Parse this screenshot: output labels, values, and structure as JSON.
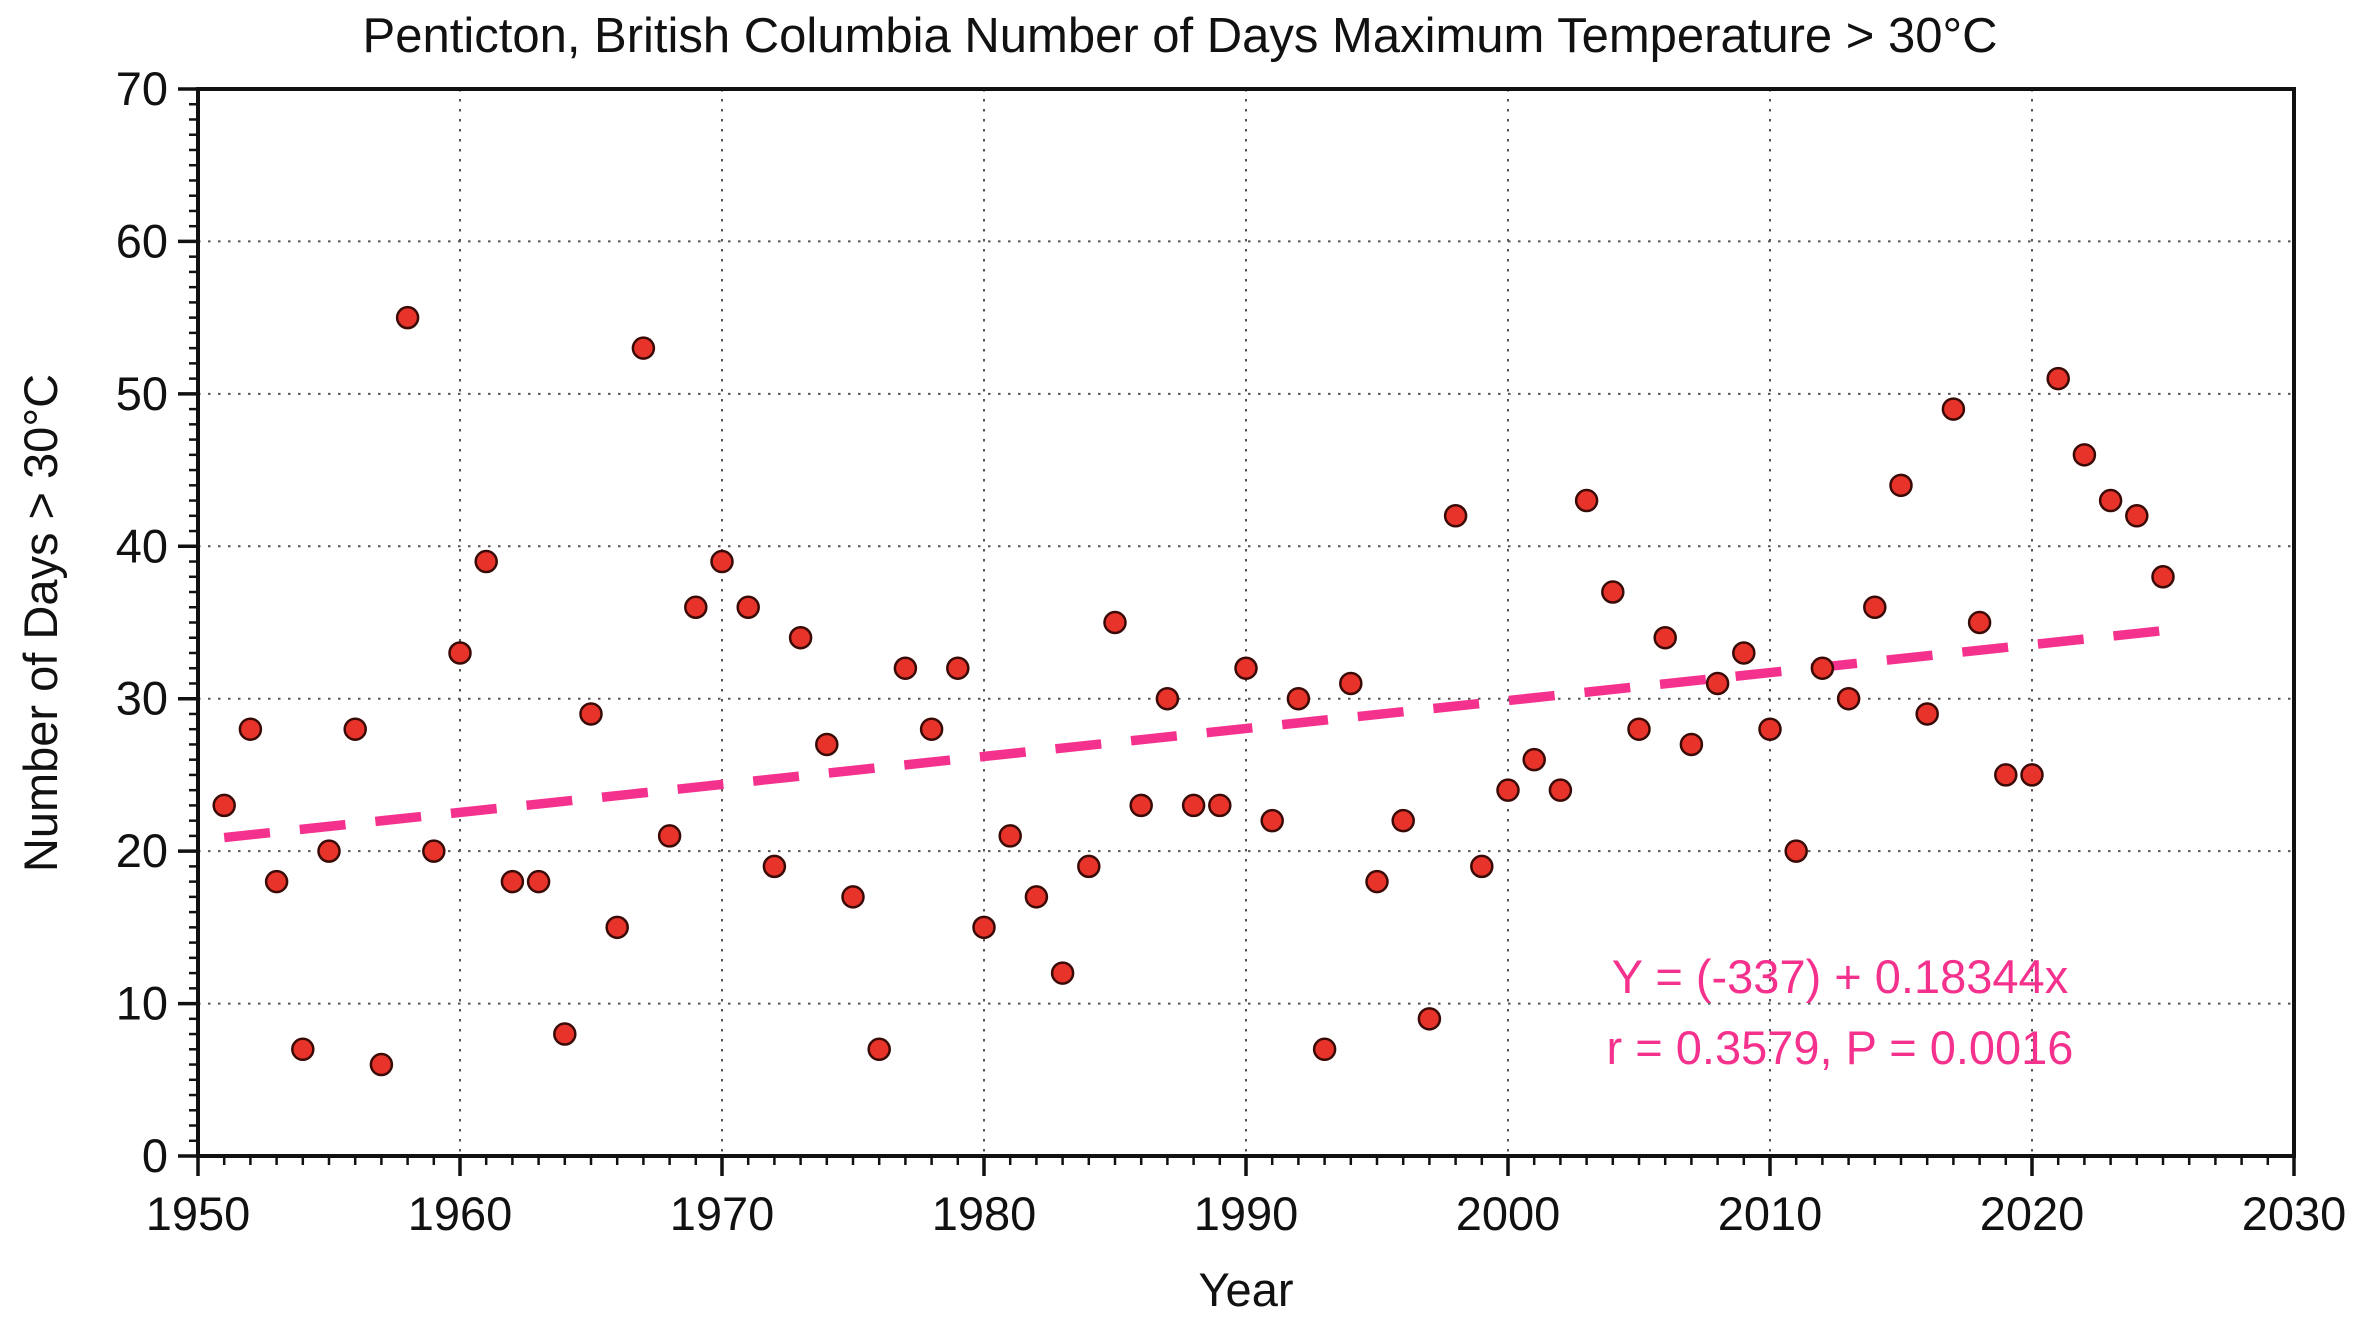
{
  "page": {
    "background": "#ffffff"
  },
  "chart_data": {
    "type": "scatter",
    "title": "Penticton, British Columbia Number of Days Maximum Temperature  > 30°C",
    "xlabel": "Year",
    "ylabel": "Number of Days > 30°C",
    "xlim": [
      1950,
      2030
    ],
    "ylim": [
      0,
      70
    ],
    "x_major_ticks": [
      1950,
      1960,
      1970,
      1980,
      1990,
      2000,
      2010,
      2020,
      2030
    ],
    "y_major_ticks": [
      0,
      10,
      20,
      30,
      40,
      50,
      60,
      70
    ],
    "x_minor_step": 1,
    "y_minor_step": 1,
    "grid": {
      "show": true,
      "style": "dotted",
      "color": "#555555"
    },
    "series": [
      {
        "name": "days-max-temp-over-30C",
        "marker": "circle",
        "marker_fill": "#e8332a",
        "marker_stroke": "#3a0b06",
        "points": [
          [
            1951,
            23
          ],
          [
            1952,
            28
          ],
          [
            1953,
            18
          ],
          [
            1954,
            7
          ],
          [
            1955,
            20
          ],
          [
            1956,
            28
          ],
          [
            1957,
            6
          ],
          [
            1958,
            55
          ],
          [
            1959,
            20
          ],
          [
            1960,
            33
          ],
          [
            1961,
            39
          ],
          [
            1962,
            18
          ],
          [
            1963,
            18
          ],
          [
            1964,
            8
          ],
          [
            1965,
            29
          ],
          [
            1966,
            15
          ],
          [
            1967,
            53
          ],
          [
            1968,
            21
          ],
          [
            1969,
            36
          ],
          [
            1970,
            39
          ],
          [
            1971,
            36
          ],
          [
            1972,
            19
          ],
          [
            1973,
            34
          ],
          [
            1974,
            27
          ],
          [
            1975,
            17
          ],
          [
            1976,
            7
          ],
          [
            1977,
            32
          ],
          [
            1978,
            28
          ],
          [
            1979,
            32
          ],
          [
            1980,
            15
          ],
          [
            1981,
            21
          ],
          [
            1982,
            17
          ],
          [
            1983,
            12
          ],
          [
            1984,
            19
          ],
          [
            1985,
            35
          ],
          [
            1986,
            23
          ],
          [
            1987,
            30
          ],
          [
            1988,
            23
          ],
          [
            1989,
            23
          ],
          [
            1990,
            32
          ],
          [
            1991,
            22
          ],
          [
            1992,
            30
          ],
          [
            1993,
            7
          ],
          [
            1994,
            31
          ],
          [
            1995,
            18
          ],
          [
            1996,
            22
          ],
          [
            1997,
            9
          ],
          [
            1998,
            42
          ],
          [
            1999,
            19
          ],
          [
            2000,
            24
          ],
          [
            2001,
            26
          ],
          [
            2002,
            24
          ],
          [
            2003,
            43
          ],
          [
            2004,
            37
          ],
          [
            2005,
            28
          ],
          [
            2006,
            34
          ],
          [
            2007,
            27
          ],
          [
            2008,
            31
          ],
          [
            2009,
            33
          ],
          [
            2010,
            28
          ],
          [
            2011,
            20
          ],
          [
            2012,
            32
          ],
          [
            2013,
            30
          ],
          [
            2014,
            36
          ],
          [
            2015,
            44
          ],
          [
            2016,
            29
          ],
          [
            2017,
            49
          ],
          [
            2018,
            35
          ],
          [
            2019,
            25
          ],
          [
            2020,
            25
          ],
          [
            2021,
            51
          ],
          [
            2022,
            46
          ],
          [
            2023,
            43
          ],
          [
            2024,
            42
          ],
          [
            2025,
            38
          ]
        ]
      }
    ],
    "trend_line": {
      "intercept": -337,
      "slope": 0.18344,
      "x_start": 1951,
      "x_end": 2025,
      "style": "dashed",
      "color": "#f5318e"
    },
    "annotation": {
      "line1": "Y = (-337) + 0.18344x",
      "line2": "r = 0.3579, P = 0.0016",
      "color": "#f5318e"
    }
  }
}
